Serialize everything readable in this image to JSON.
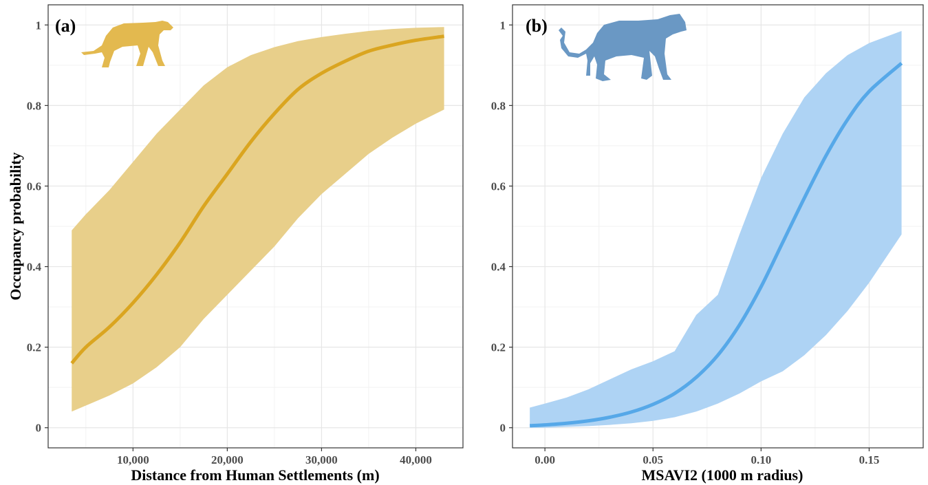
{
  "chart_data": [
    {
      "type": "line",
      "panel_label": "(a)",
      "xlabel": "Distance from Human Settlements (m)",
      "ylabel": "Occupancy probability",
      "xlim": [
        1000,
        45000
      ],
      "ylim": [
        -0.05,
        1.05
      ],
      "x_ticks": [
        10000,
        20000,
        30000,
        40000
      ],
      "x_tick_labels": [
        "10,000",
        "20,000",
        "30,000",
        "40,000"
      ],
      "y_ticks": [
        0,
        0.2,
        0.4,
        0.6,
        0.8,
        1
      ],
      "y_tick_labels": [
        "0",
        "0.2",
        "0.4",
        "0.6",
        "0.8",
        "1"
      ],
      "grid": true,
      "line_color": "#DAA520",
      "band_color": "#E8CF8A",
      "icon": "cheetah-silhouette-icon",
      "x": [
        3500,
        5000,
        7500,
        10000,
        12500,
        15000,
        17500,
        20000,
        22500,
        25000,
        27500,
        30000,
        32500,
        35000,
        37500,
        40000,
        43000
      ],
      "y": [
        0.16,
        0.2,
        0.25,
        0.31,
        0.38,
        0.46,
        0.55,
        0.63,
        0.71,
        0.78,
        0.84,
        0.88,
        0.91,
        0.935,
        0.95,
        0.962,
        0.972
      ],
      "lower": [
        0.04,
        0.055,
        0.08,
        0.11,
        0.15,
        0.2,
        0.27,
        0.33,
        0.39,
        0.45,
        0.52,
        0.58,
        0.63,
        0.68,
        0.72,
        0.755,
        0.79
      ],
      "upper": [
        0.49,
        0.53,
        0.59,
        0.66,
        0.73,
        0.79,
        0.85,
        0.895,
        0.925,
        0.945,
        0.96,
        0.97,
        0.978,
        0.985,
        0.99,
        0.993,
        0.995
      ]
    },
    {
      "type": "line",
      "panel_label": "(b)",
      "xlabel": "MSAVI2 (1000 m radius)",
      "ylabel": "",
      "xlim": [
        -0.015,
        0.175
      ],
      "ylim": [
        -0.05,
        1.05
      ],
      "x_ticks": [
        0.0,
        0.05,
        0.1,
        0.15
      ],
      "x_tick_labels": [
        "0.00",
        "0.05",
        "0.10",
        "0.15"
      ],
      "y_ticks": [
        0,
        0.2,
        0.4,
        0.6,
        0.8,
        1
      ],
      "y_tick_labels": [
        "0",
        "0.2",
        "0.4",
        "0.6",
        "0.8",
        "1"
      ],
      "grid": true,
      "line_color": "#56A8E8",
      "band_color": "#AED3F4",
      "icon": "leopard-silhouette-icon",
      "x": [
        -0.007,
        0.0,
        0.01,
        0.02,
        0.03,
        0.04,
        0.05,
        0.06,
        0.07,
        0.08,
        0.09,
        0.1,
        0.11,
        0.12,
        0.13,
        0.14,
        0.15,
        0.165
      ],
      "y": [
        0.005,
        0.007,
        0.011,
        0.017,
        0.026,
        0.039,
        0.058,
        0.085,
        0.125,
        0.18,
        0.255,
        0.35,
        0.46,
        0.57,
        0.675,
        0.765,
        0.835,
        0.905
      ],
      "lower": [
        0.0,
        0.0,
        0.002,
        0.004,
        0.007,
        0.011,
        0.017,
        0.026,
        0.04,
        0.06,
        0.085,
        0.115,
        0.14,
        0.18,
        0.23,
        0.29,
        0.36,
        0.48
      ],
      "upper": [
        0.05,
        0.06,
        0.075,
        0.095,
        0.12,
        0.145,
        0.165,
        0.19,
        0.28,
        0.33,
        0.48,
        0.62,
        0.73,
        0.82,
        0.88,
        0.925,
        0.955,
        0.985
      ]
    }
  ]
}
